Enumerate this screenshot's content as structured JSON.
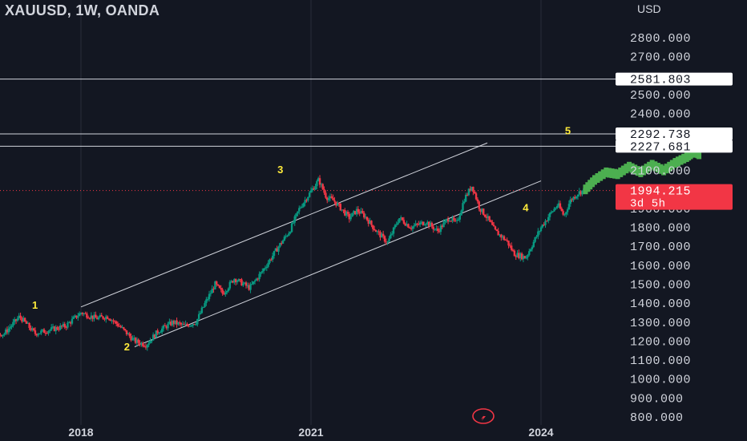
{
  "header": {
    "symbol": "XAUUSD, 1W, OANDA",
    "currency": "USD"
  },
  "chart_data": {
    "type": "candlestick",
    "title": "XAUUSD, 1W, OANDA",
    "ylabel": "USD",
    "ylim": [
      770,
      2890
    ],
    "y_ticks": [
      "2800.000",
      "2700.000",
      "2500.000",
      "2400.000",
      "2100.000",
      "1900.000",
      "1800.000",
      "1700.000",
      "1600.000",
      "1500.000",
      "1400.000",
      "1300.000",
      "1200.000",
      "1100.000",
      "1000.000",
      "900.000",
      "800.000"
    ],
    "x_ticks": [
      "2018",
      "2021",
      "2024"
    ],
    "horizontal_levels": [
      {
        "label": "2581.803",
        "value": 2581.803
      },
      {
        "label": "2292.738",
        "value": 2292.738
      },
      {
        "label": "2227.681",
        "value": 2227.681
      }
    ],
    "current_price": {
      "label": "1994.215",
      "value": 1994.215,
      "countdown": "3d 5h"
    },
    "wave_labels": [
      {
        "label": "1",
        "date": 2017.4,
        "value": 1370
      },
      {
        "label": "2",
        "date": 2018.6,
        "value": 1150
      },
      {
        "label": "3",
        "date": 2020.6,
        "value": 2085
      },
      {
        "label": "4",
        "date": 2023.8,
        "value": 1885
      },
      {
        "label": "5",
        "date": 2024.35,
        "value": 2290
      }
    ],
    "channel": {
      "upper": [
        {
          "date": 2018.0,
          "value": 1380
        },
        {
          "date": 2023.3,
          "value": 2245
        }
      ],
      "lower": [
        {
          "date": 2018.7,
          "value": 1170
        },
        {
          "date": 2024.0,
          "value": 2045
        }
      ]
    },
    "price_path": [
      [
        2016.0,
        1140
      ],
      [
        2016.2,
        1240
      ],
      [
        2016.45,
        1260
      ],
      [
        2016.6,
        1300
      ],
      [
        2016.8,
        1230
      ],
      [
        2017.0,
        1240
      ],
      [
        2017.2,
        1330
      ],
      [
        2017.4,
        1240
      ],
      [
        2017.6,
        1260
      ],
      [
        2017.8,
        1280
      ],
      [
        2018.0,
        1350
      ],
      [
        2018.2,
        1320
      ],
      [
        2018.35,
        1330
      ],
      [
        2018.5,
        1280
      ],
      [
        2018.7,
        1200
      ],
      [
        2018.85,
        1180
      ],
      [
        2019.0,
        1250
      ],
      [
        2019.2,
        1300
      ],
      [
        2019.35,
        1280
      ],
      [
        2019.5,
        1300
      ],
      [
        2019.62,
        1400
      ],
      [
        2019.75,
        1500
      ],
      [
        2019.85,
        1450
      ],
      [
        2020.0,
        1530
      ],
      [
        2020.2,
        1480
      ],
      [
        2020.35,
        1560
      ],
      [
        2020.45,
        1620
      ],
      [
        2020.58,
        1700
      ],
      [
        2020.72,
        1780
      ],
      [
        2020.85,
        1900
      ],
      [
        2021.0,
        1990
      ],
      [
        2021.1,
        2050
      ],
      [
        2021.2,
        1960
      ],
      [
        2021.3,
        1940
      ],
      [
        2021.5,
        1850
      ],
      [
        2021.6,
        1890
      ],
      [
        2021.7,
        1860
      ],
      [
        2021.85,
        1780
      ],
      [
        2022.0,
        1720
      ],
      [
        2022.15,
        1850
      ],
      [
        2022.3,
        1800
      ],
      [
        2022.5,
        1830
      ],
      [
        2022.65,
        1780
      ],
      [
        2022.8,
        1850
      ],
      [
        2022.9,
        1820
      ],
      [
        2023.0,
        1950
      ],
      [
        2023.1,
        2020
      ],
      [
        2023.2,
        1900
      ],
      [
        2023.3,
        1850
      ],
      [
        2023.4,
        1780
      ],
      [
        2023.55,
        1730
      ],
      [
        2023.65,
        1660
      ],
      [
        2023.8,
        1640
      ],
      [
        2023.9,
        1720
      ],
      [
        2024.0,
        1800
      ],
      [
        2024.12,
        1870
      ],
      [
        2024.22,
        1920
      ],
      [
        2024.3,
        1860
      ],
      [
        2024.38,
        1940
      ],
      [
        2024.48,
        1980
      ],
      [
        2024.58,
        2000
      ]
    ],
    "projection_path": [
      [
        2024.58,
        2000
      ],
      [
        2024.7,
        2050
      ],
      [
        2024.85,
        2090
      ],
      [
        2025.0,
        2080
      ],
      [
        2025.15,
        2120
      ],
      [
        2025.3,
        2090
      ],
      [
        2025.45,
        2130
      ],
      [
        2025.6,
        2100
      ],
      [
        2025.75,
        2140
      ],
      [
        2025.9,
        2170
      ],
      [
        2026.0,
        2200
      ],
      [
        2026.08,
        2180
      ]
    ],
    "colors": {
      "background": "#131722",
      "up": "#089981",
      "down": "#f23645",
      "projection": "#4caf50",
      "wave_label": "#ffeb3b",
      "current_price_badge": "#f23645",
      "level_badge": "#ffffff"
    },
    "grid": false
  }
}
